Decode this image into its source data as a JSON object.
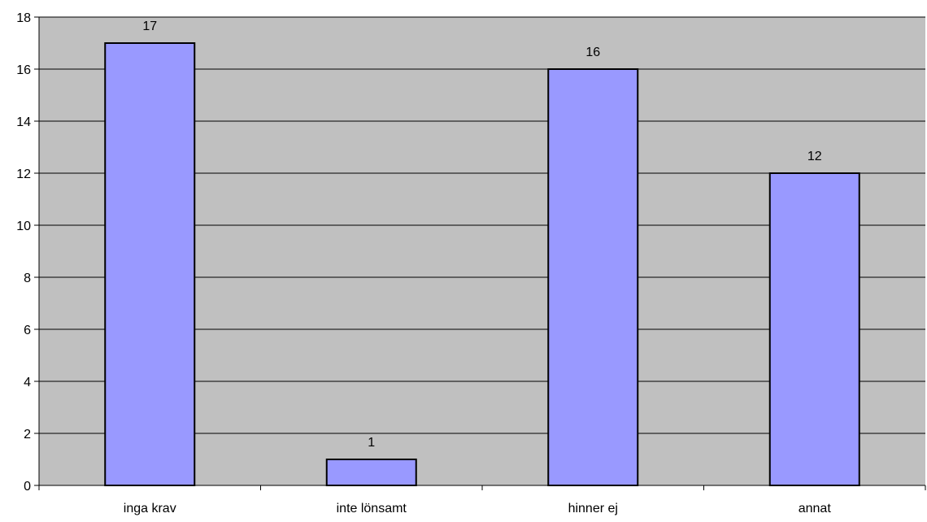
{
  "chart_data": {
    "type": "bar",
    "categories": [
      "inga krav",
      "inte lönsamt",
      "hinner ej",
      "annat"
    ],
    "values": [
      17,
      1,
      16,
      12
    ],
    "data_labels": [
      "17",
      "1",
      "16",
      "12"
    ],
    "title": "",
    "xlabel": "",
    "ylabel": "",
    "ylim": [
      0,
      18
    ],
    "yticks": [
      0,
      2,
      4,
      6,
      8,
      10,
      12,
      14,
      16,
      18
    ],
    "ytick_labels": [
      "0",
      "2",
      "4",
      "6",
      "8",
      "10",
      "12",
      "14",
      "16",
      "18"
    ],
    "grid": true,
    "legend": "none"
  },
  "colors": {
    "plot_background": "#c0c0c0",
    "bar_fill": "#9999ff",
    "bar_stroke": "#000000",
    "gridline": "#000000"
  }
}
